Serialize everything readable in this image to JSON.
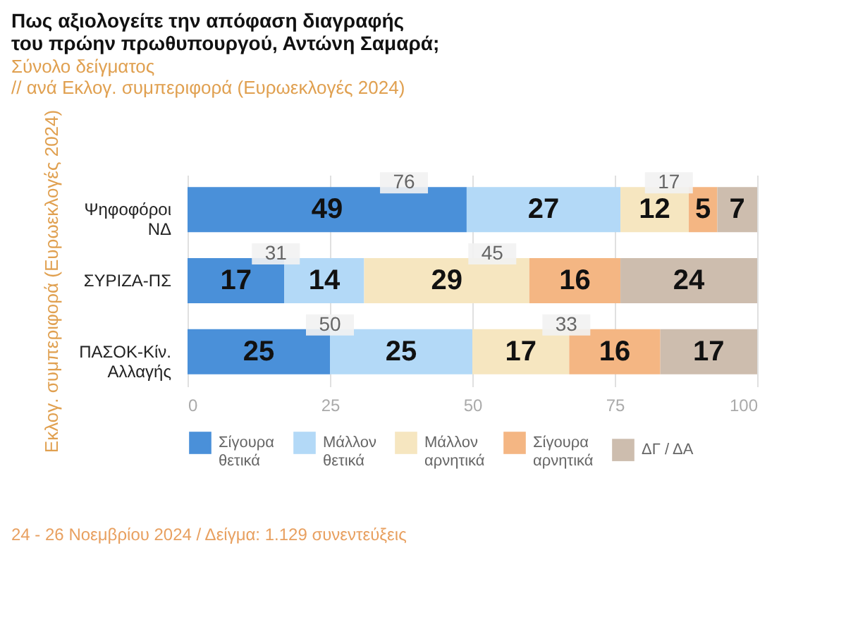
{
  "chart_data": {
    "type": "bar",
    "orientation": "horizontal",
    "stacked": true,
    "title": "Πως αξιολογείτε  την απόφαση διαγραφής\nτου πρώην πρωθυπουργού, Αντώνη Σαμαρά;",
    "subtitle": "Σύνολο δείγματος\n // ανά Εκλογ. συμπεριφορά (Ευρωεκλογές 2024)",
    "ylabel": "Εκλογ. συμπεριφορά (Ευρωεκλογές 2024)",
    "categories": [
      "Ψηφοφόροι ΝΔ",
      "ΣΥΡΙΖΑ-ΠΣ",
      "ΠΑΣΟΚ-Κίν. Αλλαγής"
    ],
    "series": [
      {
        "name": "Σίγουρα θετικά",
        "color": "#4a90d9",
        "values": [
          49,
          17,
          25
        ]
      },
      {
        "name": "Μάλλον θετικά",
        "color": "#b3d9f7",
        "values": [
          27,
          14,
          25
        ]
      },
      {
        "name": "Μάλλον αρνητικά",
        "color": "#f6e6c0",
        "values": [
          12,
          29,
          17
        ]
      },
      {
        "name": "Σίγουρα αρνητικά",
        "color": "#f4b683",
        "values": [
          5,
          16,
          16
        ]
      },
      {
        "name": "ΔΓ / ΔΑ",
        "color": "#cdbdae",
        "values": [
          7,
          24,
          17
        ]
      }
    ],
    "xlim": [
      0,
      100
    ],
    "xticks": [
      0,
      25,
      50,
      75,
      100
    ],
    "grid": "x",
    "legend": "bottom",
    "data_labels": true,
    "annotations": [
      "76",
      "17",
      "31",
      "45",
      "50",
      "33",
      "24 - 26 Νοεμβρίου 2024  /  Δείγμα:  1.129 συνεντεύξεις"
    ]
  }
}
